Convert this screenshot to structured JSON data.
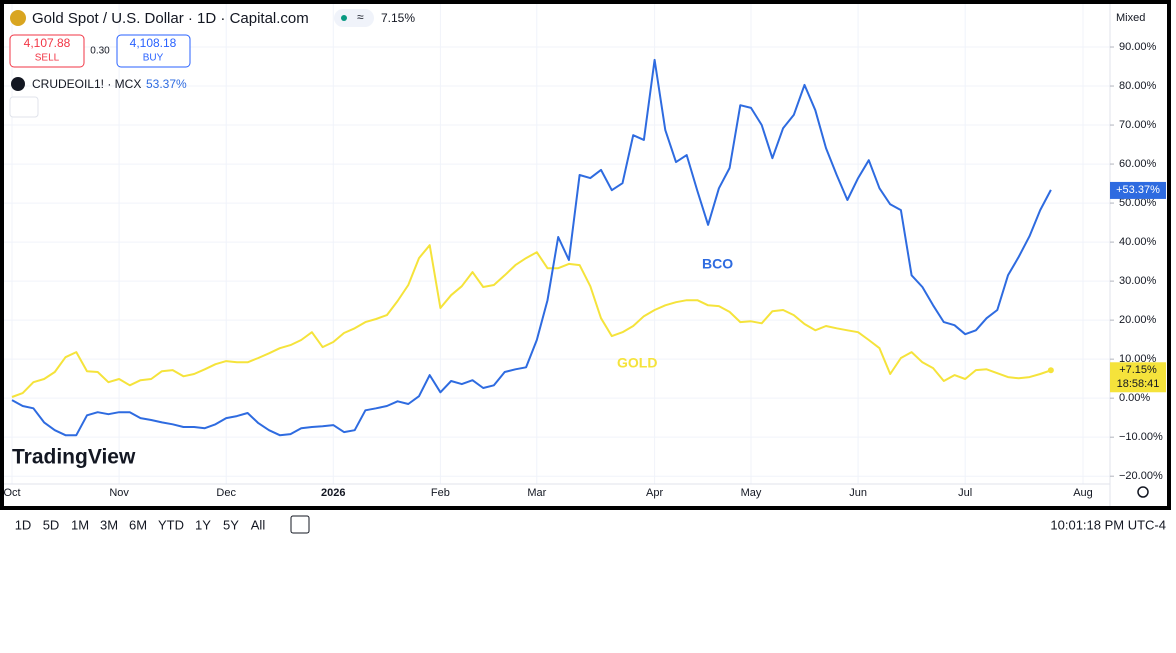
{
  "chart_data": {
    "type": "line",
    "categories": [
      "Oct",
      null,
      null,
      null,
      null,
      null,
      null,
      null,
      null,
      null,
      "Nov",
      null,
      null,
      null,
      null,
      null,
      null,
      null,
      null,
      null,
      "Dec",
      null,
      null,
      null,
      null,
      null,
      null,
      null,
      null,
      null,
      "2026",
      null,
      null,
      null,
      null,
      null,
      null,
      null,
      null,
      null,
      "Feb",
      null,
      null,
      null,
      null,
      null,
      null,
      null,
      null,
      "Mar",
      null,
      null,
      null,
      null,
      null,
      null,
      null,
      null,
      null,
      null,
      "Apr",
      null,
      null,
      null,
      null,
      null,
      null,
      null,
      null,
      "May",
      null,
      null,
      null,
      null,
      null,
      null,
      null,
      null,
      null,
      "Jun",
      null,
      null,
      null,
      null,
      null,
      null,
      null,
      null,
      null,
      "Jul",
      null,
      null,
      null,
      null,
      null,
      null,
      null,
      null,
      null,
      null,
      "Aug"
    ],
    "series": [
      {
        "name": "Gold Spot / U.S. Dollar · 1D · Capital.com",
        "change_label": "7.15%",
        "tag_label": "+7.15%",
        "annotation": "GOLD",
        "color": "#f5e33b",
        "values": [
          0.3,
          1.3,
          4.1,
          4.9,
          6.7,
          10.5,
          11.8,
          6.9,
          6.7,
          4.1,
          4.9,
          3.3,
          4.6,
          4.9,
          6.9,
          7.2,
          5.6,
          6.2,
          7.4,
          8.7,
          9.5,
          9.2,
          9.2,
          10.3,
          11.5,
          12.8,
          13.6,
          14.9,
          16.9,
          13.1,
          14.4,
          16.7,
          17.9,
          19.5,
          20.3,
          21.3,
          24.9,
          29,
          35.9,
          39.2,
          23.1,
          26.4,
          28.7,
          32.3,
          28.5,
          29,
          31.5,
          34.1,
          35.9,
          37.4,
          33.3,
          33.3,
          34.4,
          34.1,
          28.7,
          20.5,
          15.9,
          16.9,
          18.5,
          21,
          22.6,
          23.8,
          24.6,
          25.1,
          25.1,
          23.8,
          23.6,
          22.1,
          19.5,
          19.7,
          19.2,
          22.3,
          22.6,
          21.3,
          19,
          17.4,
          18.5,
          17.9,
          17.4,
          16.9,
          14.9,
          12.8,
          6.2,
          10.3,
          11.8,
          9.2,
          7.7,
          4.4,
          5.9,
          4.9,
          7.2,
          7.4,
          6.4,
          5.4,
          5.1,
          5.4,
          6.2,
          7.15,
          null,
          null,
          null
        ]
      },
      {
        "name": "CRUDEOIL1! · MCX",
        "change_label": "53.37%",
        "tag_label": "+53.37%",
        "annotation": "BCO",
        "color": "#2e6be0",
        "values": [
          -0.5,
          -2,
          -2.6,
          -6.2,
          -8.2,
          -9.5,
          -9.5,
          -4.4,
          -3.6,
          -4.1,
          -3.6,
          -3.6,
          -5.1,
          -5.6,
          -6.2,
          -6.7,
          -7.4,
          -7.4,
          -7.7,
          -6.7,
          -5.1,
          -4.6,
          -3.8,
          -6.4,
          -8.2,
          -9.5,
          -9.2,
          -7.7,
          -7.4,
          -7.2,
          -6.9,
          -8.7,
          -8.2,
          -3.1,
          -2.6,
          -2,
          -0.8,
          -1.5,
          0.5,
          5.9,
          1.5,
          4.4,
          3.6,
          4.6,
          2.6,
          3.3,
          6.7,
          7.4,
          7.9,
          14.9,
          25.1,
          41.3,
          35.4,
          57.2,
          56.4,
          58.5,
          53.3,
          55.1,
          67.4,
          66.2,
          86.7,
          68.7,
          60.5,
          62.3,
          53.1,
          44.4,
          53.8,
          59,
          75.1,
          74.4,
          70,
          61.5,
          69.2,
          72.6,
          80.3,
          73.8,
          64.1,
          57.2,
          50.8,
          56.4,
          61,
          53.8,
          49.7,
          48.2,
          31.5,
          28.5,
          23.8,
          19.5,
          18.7,
          16.4,
          17.4,
          20.5,
          22.6,
          31.5,
          36.2,
          41.5,
          48.2,
          53.37,
          null,
          null,
          null
        ]
      }
    ],
    "ylim": [
      -22,
      100
    ],
    "yticks": [
      {
        "value": -20,
        "label": "−20.00%"
      },
      {
        "value": -10,
        "label": "−10.00%"
      },
      {
        "value": 0,
        "label": "0.00%"
      },
      {
        "value": 10,
        "label": "10.00%"
      },
      {
        "value": 20,
        "label": "20.00%"
      },
      {
        "value": 30,
        "label": "30.00%"
      },
      {
        "value": 40,
        "label": "40.00%"
      },
      {
        "value": 50,
        "label": "50.00%"
      },
      {
        "value": 60,
        "label": "60.00%"
      },
      {
        "value": 70,
        "label": "70.00%"
      },
      {
        "value": 80,
        "label": "80.00%"
      },
      {
        "value": 90,
        "label": "90.00%"
      }
    ],
    "grid": true
  },
  "trade": {
    "sell_price": "4,107.88",
    "sell_label": "SELL",
    "spread": "0.30",
    "buy_price": "4,108.18",
    "buy_label": "BUY"
  },
  "scale_mode": "Mixed",
  "countdown": "18:58:41",
  "brand": "TradingView",
  "toolbar": {
    "ranges": [
      "1D",
      "5D",
      "1M",
      "3M",
      "6M",
      "YTD",
      "1Y",
      "5Y",
      "All"
    ],
    "clock": "10:01:18 PM UTC-4"
  }
}
